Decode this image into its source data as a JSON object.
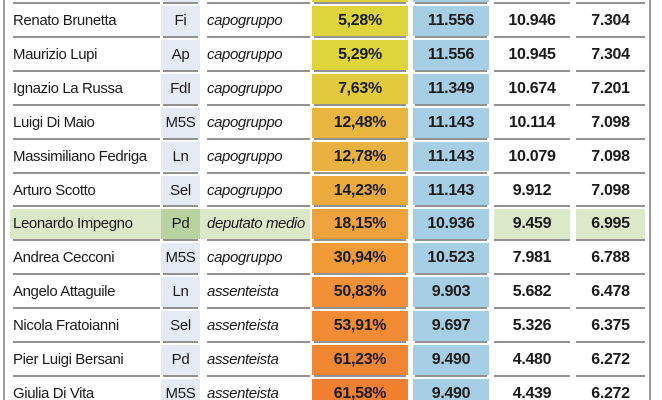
{
  "chart_data": {
    "type": "table",
    "title": "",
    "columns": [
      "name",
      "party",
      "role",
      "percent",
      "value_1",
      "value_2",
      "value_3"
    ],
    "rows": [
      {
        "name": "Renato Brunetta",
        "party": "Fi",
        "role": "capogruppo",
        "pct": "5,28%",
        "v1": "11.556",
        "v2": "10.946",
        "v3": "7.304",
        "pct_color": "#ddd53b",
        "highlight": false
      },
      {
        "name": "Maurizio Lupi",
        "party": "Ap",
        "role": "capogruppo",
        "pct": "5,29%",
        "v1": "11.556",
        "v2": "10.945",
        "v3": "7.304",
        "pct_color": "#ddd53b",
        "highlight": false
      },
      {
        "name": "Ignazio La Russa",
        "party": "FdI",
        "role": "capogruppo",
        "pct": "7,63%",
        "v1": "11.349",
        "v2": "10.674",
        "v3": "7.201",
        "pct_color": "#e1ca3c",
        "highlight": false
      },
      {
        "name": "Luigi Di Maio",
        "party": "M5S",
        "role": "capogruppo",
        "pct": "12,48%",
        "v1": "11.143",
        "v2": "10.114",
        "v3": "7.098",
        "pct_color": "#e8b63f",
        "highlight": false
      },
      {
        "name": "Massimiliano Fedriga",
        "party": "Ln",
        "role": "capogruppo",
        "pct": "12,78%",
        "v1": "11.143",
        "v2": "10.079",
        "v3": "7.098",
        "pct_color": "#e9b13f",
        "highlight": false
      },
      {
        "name": "Arturo Scotto",
        "party": "Sel",
        "role": "capogruppo",
        "pct": "14,23%",
        "v1": "11.143",
        "v2": "9.912",
        "v3": "7.098",
        "pct_color": "#ecaa3d",
        "highlight": false
      },
      {
        "name": "Leonardo Impegno",
        "party": "Pd",
        "role": "deputato medio",
        "pct": "18,15%",
        "v1": "10.936",
        "v2": "9.459",
        "v3": "6.995",
        "pct_color": "#f0a23c",
        "highlight": true
      },
      {
        "name": "Andrea Cecconi",
        "party": "M5S",
        "role": "capogruppo",
        "pct": "30,94%",
        "v1": "10.523",
        "v2": "7.981",
        "v3": "6.788",
        "pct_color": "#f09a38",
        "highlight": false
      },
      {
        "name": "Angelo Attaguile",
        "party": "Ln",
        "role": "assenteista",
        "pct": "50,83%",
        "v1": "9.903",
        "v2": "5.682",
        "v3": "6.478",
        "pct_color": "#f19036",
        "highlight": false
      },
      {
        "name": "Nicola Fratoianni",
        "party": "Sel",
        "role": "assenteista",
        "pct": "53,91%",
        "v1": "9.697",
        "v2": "5.326",
        "v3": "6.375",
        "pct_color": "#f18b34",
        "highlight": false
      },
      {
        "name": "Pier Luigi Bersani",
        "party": "Pd",
        "role": "assenteista",
        "pct": "61,23%",
        "v1": "9.490",
        "v2": "4.480",
        "v3": "6.272",
        "pct_color": "#f08533",
        "highlight": false
      },
      {
        "name": "Giulia Di Vita",
        "party": "M5S",
        "role": "assenteista",
        "pct": "61,58%",
        "v1": "9.490",
        "v2": "4.439",
        "v3": "6.272",
        "pct_color": "#f07f30",
        "highlight": false
      }
    ],
    "partial_top_row": {
      "note": "bottom sliver of a cropped row above the first full row",
      "pct_color": "#ddd53b"
    },
    "layout_hints": {
      "grid": "horizontal separator lines per column segment",
      "highlight_row_index": 6
    }
  },
  "styles": {
    "party_bg": "#e4ebf4",
    "value1_bg": "#a6cee4",
    "highlight_bg": "#dce9c9",
    "highlight_party_bg": "#bad2a2",
    "separator_color": "#929292",
    "border_color": "#9b9b9b",
    "text_color": "#1b1b1b"
  }
}
